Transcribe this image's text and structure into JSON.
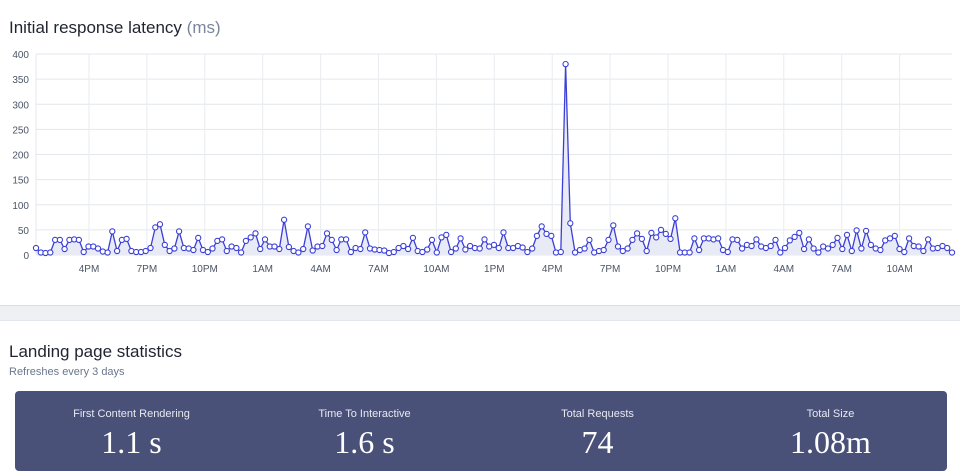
{
  "latency": {
    "title": "Initial response latency",
    "unit": "(ms)",
    "chart_data": {
      "type": "line",
      "ylim": [
        0,
        400
      ],
      "y_ticks": [
        "0",
        "50",
        "100",
        "150",
        "200",
        "250",
        "300",
        "350",
        "400"
      ],
      "x_ticks": [
        "4PM",
        "7PM",
        "10PM",
        "1AM",
        "4AM",
        "7AM",
        "10AM",
        "1PM",
        "4PM",
        "7PM",
        "10PM",
        "1AM",
        "4AM",
        "7AM",
        "10AM"
      ],
      "grid": true,
      "series_color": "#3b3fd6",
      "fill_color": "#e8eaf6",
      "values": [
        14,
        5,
        4,
        5,
        30,
        30,
        12,
        30,
        31,
        30,
        6,
        17,
        17,
        13,
        7,
        5,
        47,
        8,
        30,
        32,
        8,
        6,
        6,
        8,
        14,
        55,
        61,
        20,
        8,
        13,
        47,
        14,
        13,
        10,
        34,
        10,
        6,
        13,
        28,
        31,
        8,
        17,
        14,
        5,
        28,
        35,
        43,
        12,
        31,
        17,
        17,
        12,
        70,
        16,
        8,
        5,
        12,
        57,
        9,
        17,
        18,
        43,
        30,
        10,
        31,
        31,
        6,
        14,
        12,
        45,
        13,
        11,
        10,
        9,
        4,
        6,
        14,
        18,
        12,
        34,
        8,
        6,
        11,
        30,
        5,
        35,
        40,
        6,
        13,
        33,
        11,
        18,
        14,
        13,
        31,
        17,
        20,
        14,
        45,
        14,
        14,
        18,
        15,
        6,
        13,
        38,
        57,
        42,
        38,
        5,
        6,
        380,
        63,
        5,
        10,
        13,
        30,
        5,
        8,
        10,
        30,
        59,
        17,
        8,
        13,
        30,
        43,
        32,
        8,
        44,
        35,
        50,
        42,
        32,
        73,
        5,
        5,
        5,
        33,
        10,
        33,
        33,
        31,
        33,
        10,
        6,
        31,
        30,
        13,
        20,
        18,
        31,
        17,
        14,
        18,
        30,
        5,
        14,
        29,
        36,
        44,
        12,
        31,
        13,
        5,
        17,
        13,
        20,
        34,
        12,
        40,
        8,
        49,
        13,
        48,
        20,
        13,
        10,
        29,
        33,
        38,
        12,
        6,
        33,
        18,
        17,
        8,
        31,
        13,
        14,
        18,
        14,
        5
      ]
    }
  },
  "stats": {
    "title": "Landing page statistics",
    "subtitle": "Refreshes every 3 days",
    "items": [
      {
        "label": "First Content Rendering",
        "value": "1.1 s"
      },
      {
        "label": "Time To Interactive",
        "value": "1.6 s"
      },
      {
        "label": "Total Requests",
        "value": "74"
      },
      {
        "label": "Total Size",
        "value": "1.08m"
      }
    ]
  }
}
